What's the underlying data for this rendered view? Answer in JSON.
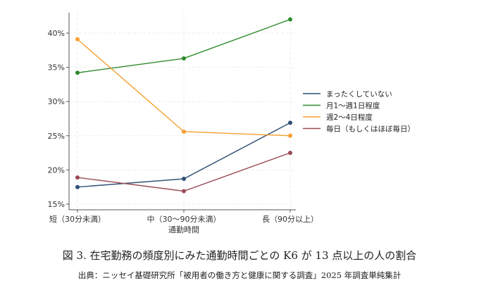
{
  "chart_data": {
    "type": "line",
    "title": "図 3.  在宅勤務の頻度別にみた通勤時間ごとの K6 が 13 点以上の人の割合",
    "source": "出典：ニッセイ基礎研究所「被用者の働き方と健康に関する調査」2025 年調査単純集計",
    "xlabel": "通勤時間",
    "ylabel": "",
    "categories": [
      "短（30分未満）",
      "中（30〜90分未満）",
      "長（90分以上）"
    ],
    "ylim": [
      14,
      43
    ],
    "yticks": [
      15,
      20,
      25,
      30,
      35,
      40
    ],
    "ytick_labels": [
      "15%",
      "20%",
      "25%",
      "30%",
      "35%",
      "40%"
    ],
    "grid": true,
    "legend_position": "right",
    "series": [
      {
        "name": "まったくしていない",
        "color": "#2f4f73",
        "values": [
          17.5,
          18.7,
          26.9
        ]
      },
      {
        "name": "月1〜週1日程度",
        "color": "#2e8b2e",
        "values": [
          34.2,
          36.3,
          42.0
        ]
      },
      {
        "name": "週2〜4日程度",
        "color": "#f5a030",
        "values": [
          39.1,
          25.6,
          25.0
        ]
      },
      {
        "name": "毎日（もしくはほぼ毎日）",
        "color": "#9a4a55",
        "values": [
          18.9,
          16.9,
          22.5
        ]
      }
    ]
  }
}
